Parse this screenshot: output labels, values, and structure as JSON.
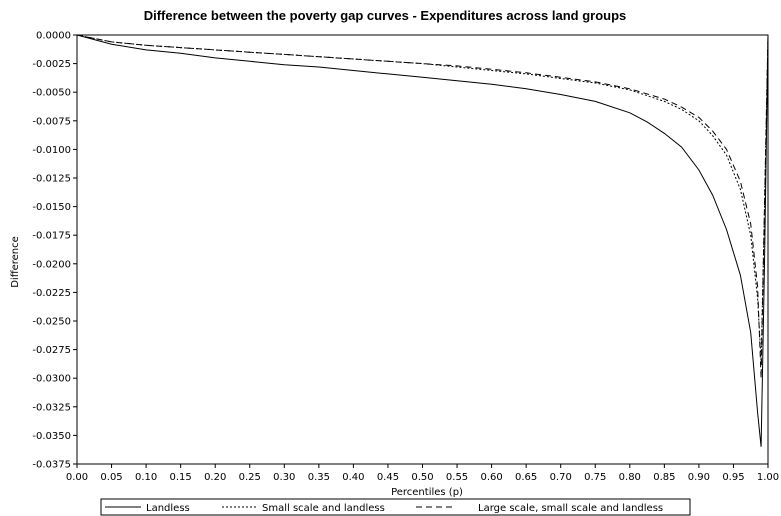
{
  "chart_data": {
    "type": "line",
    "title": "Difference between the poverty gap curves - Expenditures across land groups",
    "xlabel": "Percentiles (p)",
    "ylabel": "Difference",
    "xlim": [
      0,
      1
    ],
    "ylim": [
      -0.0375,
      0
    ],
    "x_ticks": [
      "0.00",
      "0.05",
      "0.10",
      "0.15",
      "0.20",
      "0.25",
      "0.30",
      "0.35",
      "0.40",
      "0.45",
      "0.50",
      "0.55",
      "0.60",
      "0.65",
      "0.70",
      "0.75",
      "0.80",
      "0.85",
      "0.90",
      "0.95",
      "1.00"
    ],
    "y_ticks": [
      "0.0000",
      "-0.0025",
      "-0.0050",
      "-0.0075",
      "-0.0100",
      "-0.0125",
      "-0.0150",
      "-0.0175",
      "-0.0200",
      "-0.0225",
      "-0.0250",
      "-0.0275",
      "-0.0300",
      "-0.0325",
      "-0.0350",
      "-0.0375"
    ],
    "grid": false,
    "legend_position": "bottom",
    "series": [
      {
        "name": "Landless",
        "style": "solid",
        "color": "#000000",
        "x": [
          0,
          0.05,
          0.1,
          0.15,
          0.2,
          0.25,
          0.3,
          0.35,
          0.4,
          0.45,
          0.5,
          0.55,
          0.6,
          0.65,
          0.7,
          0.75,
          0.8,
          0.825,
          0.85,
          0.875,
          0.9,
          0.92,
          0.94,
          0.96,
          0.975,
          0.985,
          0.99,
          0.995,
          1.0
        ],
        "y": [
          0,
          -0.0008,
          -0.0013,
          -0.0016,
          -0.002,
          -0.0023,
          -0.0026,
          -0.0028,
          -0.0031,
          -0.0034,
          -0.0037,
          -0.004,
          -0.0043,
          -0.0047,
          -0.0052,
          -0.0058,
          -0.0068,
          -0.0076,
          -0.0086,
          -0.0098,
          -0.0118,
          -0.014,
          -0.017,
          -0.021,
          -0.026,
          -0.033,
          -0.036,
          -0.02,
          0
        ]
      },
      {
        "name": "Small scale and landless",
        "style": "dotted",
        "color": "#000000",
        "x": [
          0,
          0.05,
          0.1,
          0.15,
          0.2,
          0.25,
          0.3,
          0.35,
          0.4,
          0.45,
          0.5,
          0.55,
          0.6,
          0.65,
          0.7,
          0.75,
          0.8,
          0.85,
          0.875,
          0.9,
          0.92,
          0.94,
          0.96,
          0.975,
          0.985,
          0.99,
          0.995,
          1.0
        ],
        "y": [
          0,
          -0.0006,
          -0.0009,
          -0.0011,
          -0.0013,
          -0.0015,
          -0.0017,
          -0.0019,
          -0.0021,
          -0.0023,
          -0.0025,
          -0.0028,
          -0.0031,
          -0.0034,
          -0.0038,
          -0.0042,
          -0.0048,
          -0.0058,
          -0.0065,
          -0.0075,
          -0.0088,
          -0.0105,
          -0.0135,
          -0.0175,
          -0.023,
          -0.0285,
          -0.015,
          0
        ]
      },
      {
        "name": "Large scale, small scale and landless",
        "style": "dashed",
        "color": "#000000",
        "x": [
          0,
          0.05,
          0.1,
          0.15,
          0.2,
          0.25,
          0.3,
          0.35,
          0.4,
          0.45,
          0.5,
          0.55,
          0.6,
          0.65,
          0.7,
          0.75,
          0.8,
          0.85,
          0.875,
          0.9,
          0.92,
          0.94,
          0.96,
          0.975,
          0.985,
          0.99,
          0.995,
          1.0
        ],
        "y": [
          0,
          -0.0006,
          -0.0009,
          -0.0011,
          -0.0013,
          -0.0015,
          -0.0017,
          -0.0019,
          -0.0021,
          -0.0023,
          -0.0025,
          -0.0027,
          -0.003,
          -0.0033,
          -0.0037,
          -0.0041,
          -0.0047,
          -0.0056,
          -0.0063,
          -0.0072,
          -0.0084,
          -0.01,
          -0.0128,
          -0.0165,
          -0.022,
          -0.03,
          -0.015,
          0
        ]
      }
    ]
  }
}
